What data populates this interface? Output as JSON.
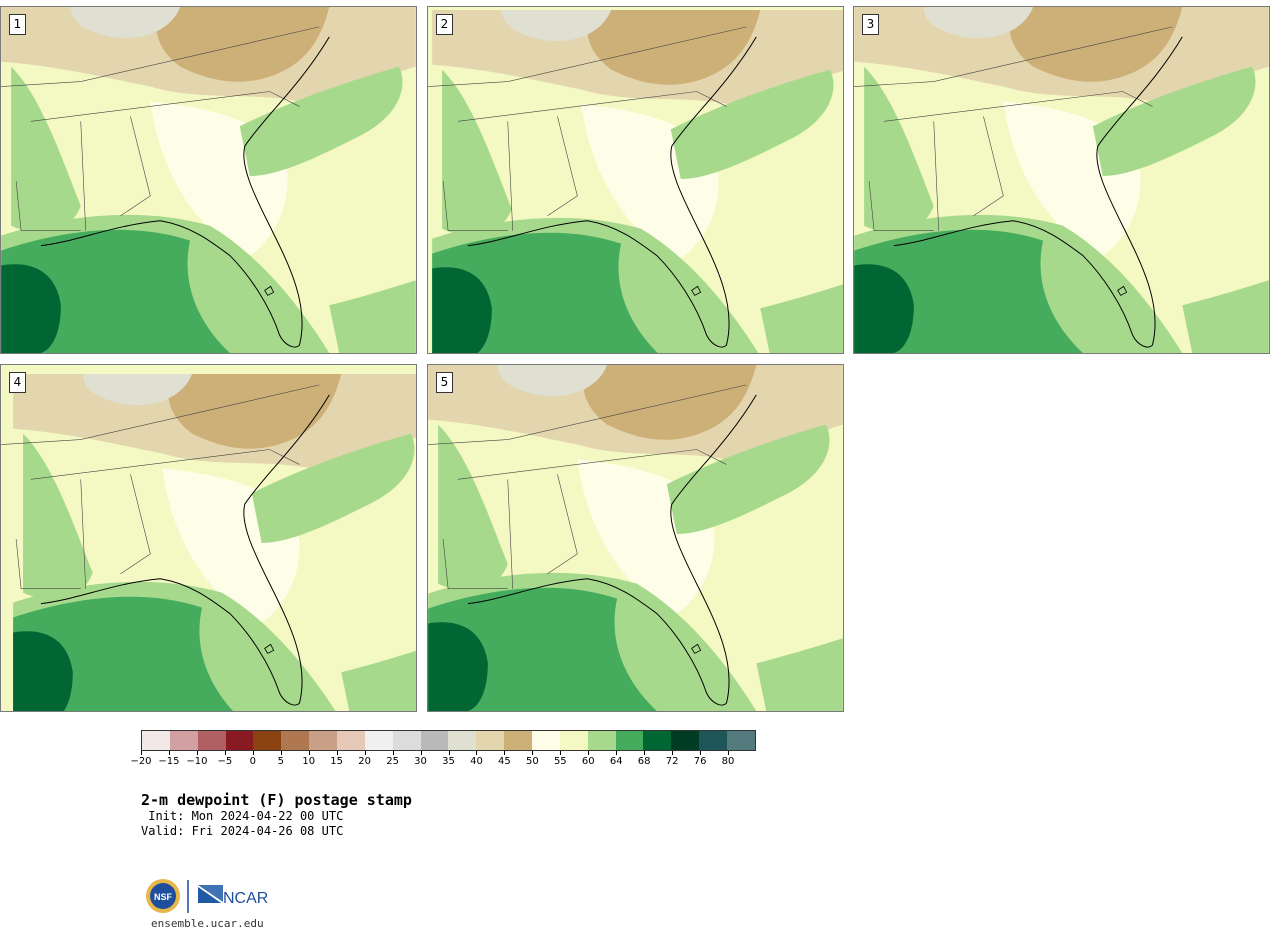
{
  "panels": [
    {
      "label": "1"
    },
    {
      "label": "2"
    },
    {
      "label": "3"
    },
    {
      "label": "4"
    },
    {
      "label": "5"
    }
  ],
  "colorbar": {
    "colors": [
      "#f3e8e8",
      "#d2a0a3",
      "#b05f63",
      "#8a1a22",
      "#8a4210",
      "#b07850",
      "#c9a085",
      "#e5c8b5",
      "#f0f0f0",
      "#dcdcdc",
      "#b9b9b9",
      "#e0e0d2",
      "#e3d5ae",
      "#cdb078",
      "#fefee8",
      "#f4f8c2",
      "#a6d98c",
      "#45ab5d",
      "#006633",
      "#003b24",
      "#1e5558",
      "#537b7e"
    ],
    "tick_labels": [
      "−20",
      "−15",
      "−10",
      "−5",
      "0",
      "5",
      "10",
      "15",
      "20",
      "25",
      "30",
      "35",
      "40",
      "45",
      "50",
      "55",
      "60",
      "64",
      "68",
      "72",
      "76",
      "80"
    ]
  },
  "title": "2-m dewpoint (F) postage stamp",
  "init_line": " Init: Mon 2024-04-22 00 UTC",
  "valid_line": "Valid: Fri 2024-04-26 08 UTC",
  "logos": {
    "nsf": "NSF",
    "ncar": "NCAR"
  },
  "site": "ensemble.ucar.edu"
}
